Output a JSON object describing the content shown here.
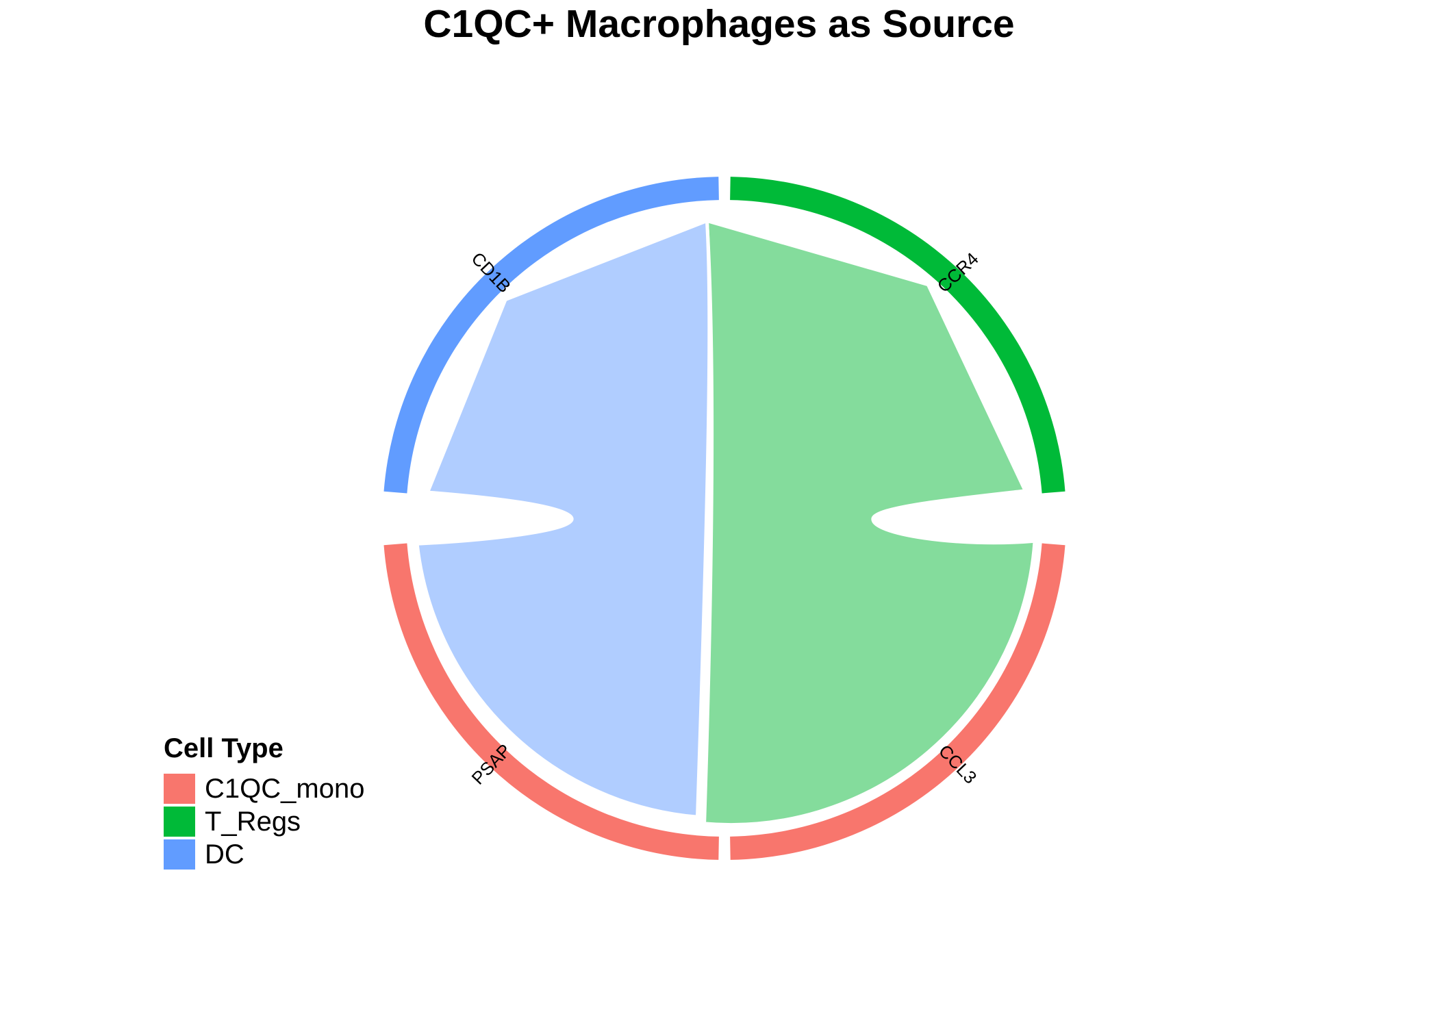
{
  "chart_data": {
    "type": "chord",
    "title": "C1QC+ Macrophages as Source",
    "sectors": [
      {
        "name": "CCR4",
        "cell_type": "T_Regs"
      },
      {
        "name": "CCL3",
        "cell_type": "C1QC_mono"
      },
      {
        "name": "PSAP",
        "cell_type": "C1QC_mono"
      },
      {
        "name": "CD1B",
        "cell_type": "DC"
      }
    ],
    "links": [
      {
        "from": "CCL3",
        "to": "CCR4",
        "target_cell_type": "T_Regs"
      },
      {
        "from": "PSAP",
        "to": "CD1B",
        "target_cell_type": "DC"
      }
    ],
    "legend": {
      "title": "Cell Type",
      "placement": "bottom-left",
      "items": [
        {
          "label": "C1QC_mono",
          "color": "#F8766D"
        },
        {
          "label": "T_Regs",
          "color": "#00BA38"
        },
        {
          "label": "DC",
          "color": "#619CFF"
        }
      ]
    },
    "link_colors": {
      "T_Regs": "#84DC9C",
      "DC": "#B0CDFF"
    }
  }
}
